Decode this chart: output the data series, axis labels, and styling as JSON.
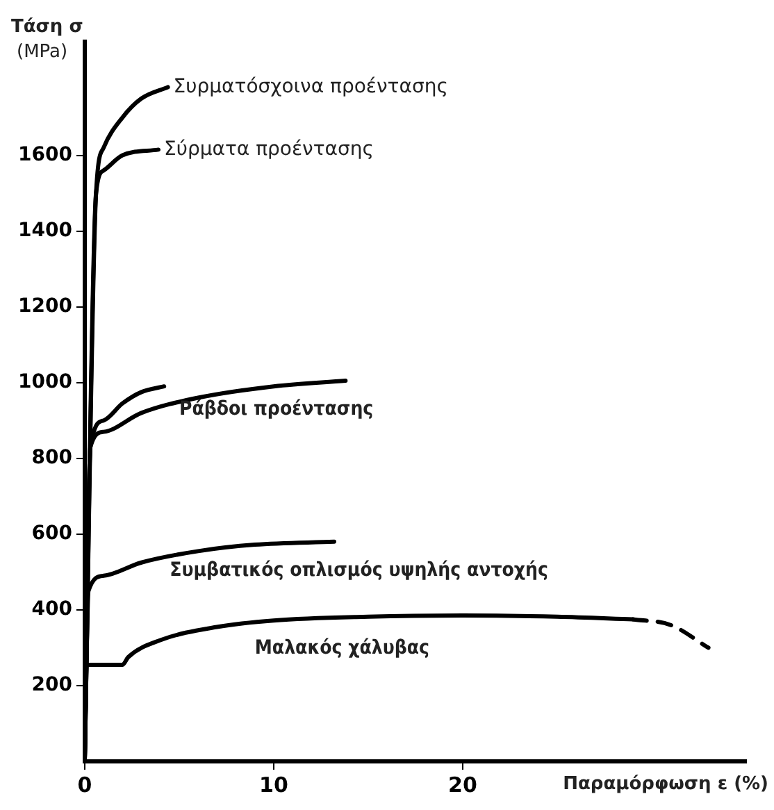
{
  "chart_data": {
    "type": "line",
    "xlabel": "Παραμόρφωση ε (%)",
    "ylabel": "Τάση σ (MPa)",
    "xlim": [
      0,
      35
    ],
    "ylim": [
      0,
      1900
    ],
    "xticks": [
      0,
      10,
      20
    ],
    "yticks": [
      200,
      400,
      600,
      800,
      1000,
      1200,
      1400,
      1600
    ],
    "grid": false,
    "legend": false,
    "marker": "none",
    "line_style": "solid",
    "series": [
      {
        "name": "Συρματόσχοινα προέντασης",
        "color": "#000000",
        "x": [
          0,
          0.6,
          1,
          2,
          3,
          4.4
        ],
        "values": [
          0,
          1500,
          1620,
          1700,
          1750,
          1780
        ]
      },
      {
        "name": "Σύρματα προέντασης",
        "color": "#000000",
        "x": [
          0,
          0.6,
          1,
          2,
          3.9
        ],
        "values": [
          0,
          1500,
          1560,
          1600,
          1615
        ]
      },
      {
        "color": "#000000",
        "x": [
          0,
          0.3,
          1,
          2,
          3,
          4.2
        ],
        "values": [
          0,
          830,
          900,
          945,
          975,
          990
        ]
      },
      {
        "name": "Ράβδοι προέντασης",
        "color": "#000000",
        "x": [
          0,
          0.3,
          1,
          3,
          6,
          10,
          13.8
        ],
        "values": [
          0,
          830,
          870,
          920,
          960,
          990,
          1005
        ]
      },
      {
        "name": "Συμβατικός οπλισμός υψηλής αντοχής",
        "color": "#000000",
        "x": [
          0,
          0.2,
          1,
          3,
          6,
          9,
          13.2
        ],
        "values": [
          0,
          450,
          490,
          525,
          555,
          572,
          580
        ]
      },
      {
        "name": "Μαλακός χάλυβας",
        "color": "#000000",
        "x": [
          0,
          0.1,
          2,
          2.3,
          4,
          7,
          10,
          15,
          20,
          25,
          29
        ],
        "values": [
          0,
          255,
          255,
          275,
          320,
          355,
          372,
          382,
          385,
          382,
          375
        ]
      },
      {
        "color": "#000000",
        "line_style": "dashed",
        "x": [
          29,
          31,
          33
        ],
        "values": [
          375,
          360,
          300
        ]
      }
    ]
  }
}
